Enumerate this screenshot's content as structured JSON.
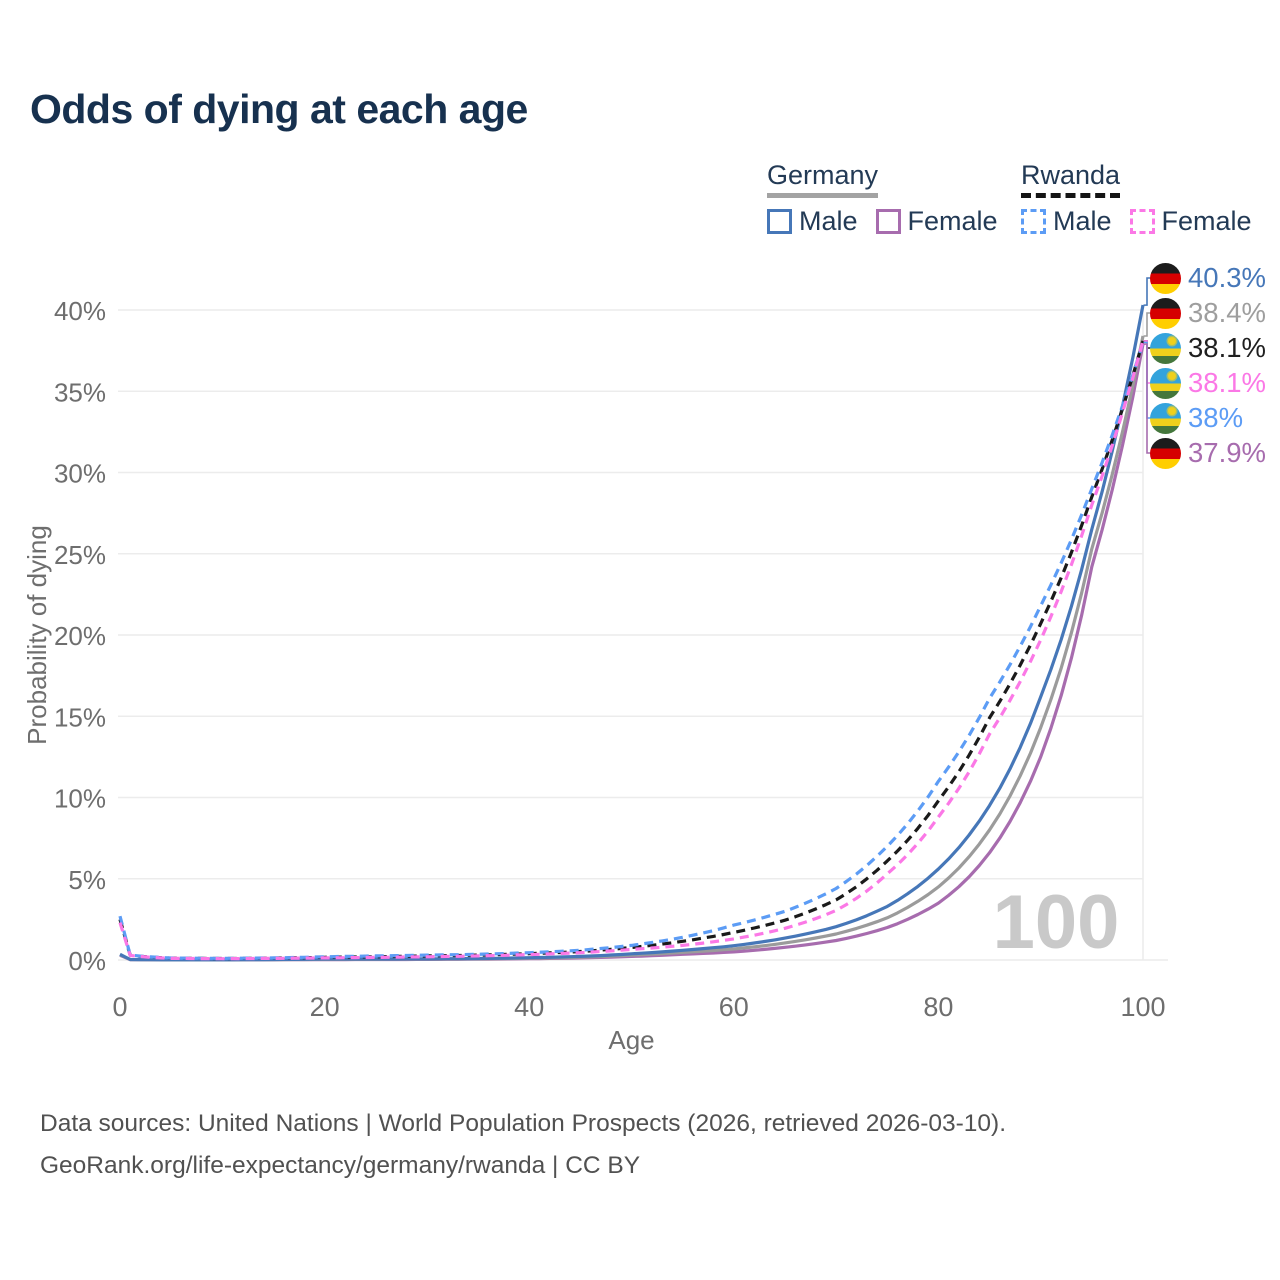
{
  "title": "Odds of dying at each age",
  "legend": {
    "groups": [
      {
        "id": "germany",
        "label": "Germany",
        "underline": "solid",
        "underline_color": "#a3a3a3",
        "items": [
          {
            "series": "de_m",
            "label": "Male",
            "color": "#4677b8",
            "dashed": false
          },
          {
            "series": "de_f",
            "label": "Female",
            "color": "#a76cae",
            "dashed": false
          }
        ]
      },
      {
        "id": "rwanda",
        "label": "Rwanda",
        "underline": "dashed",
        "underline_color": "#141414",
        "items": [
          {
            "series": "rw_m",
            "label": "Male",
            "color": "#5c9cf5",
            "dashed": true
          },
          {
            "series": "rw_f",
            "label": "Female",
            "color": "#fb78e6",
            "dashed": true
          }
        ]
      }
    ]
  },
  "chart_data": {
    "type": "line",
    "title": "Odds of dying at each age",
    "xlabel": "Age",
    "ylabel": "Probability of dying",
    "xlim": [
      0,
      100
    ],
    "ylim_percent": [
      0,
      42
    ],
    "grid": "horizontal",
    "watermark": "100",
    "x_ticks": [
      0,
      20,
      40,
      60,
      80,
      100
    ],
    "y_ticks": [
      {
        "value": 0,
        "label": "0%"
      },
      {
        "value": 5,
        "label": "5%"
      },
      {
        "value": 10,
        "label": "10%"
      },
      {
        "value": 15,
        "label": "15%"
      },
      {
        "value": 20,
        "label": "20%"
      },
      {
        "value": 25,
        "label": "25%"
      },
      {
        "value": 30,
        "label": "30%"
      },
      {
        "value": 35,
        "label": "35%"
      },
      {
        "value": 40,
        "label": "40%"
      }
    ],
    "ages": [
      0,
      1,
      5,
      10,
      15,
      20,
      25,
      30,
      35,
      40,
      45,
      50,
      55,
      60,
      65,
      70,
      75,
      80,
      85,
      90,
      95,
      100
    ],
    "series": [
      {
        "id": "de_f",
        "name": "Germany Female",
        "color": "#a76cae",
        "dashed": false,
        "end_value_percent": 37.9,
        "values_percent": [
          0.29,
          0.025,
          0.008,
          0.008,
          0.015,
          0.025,
          0.03,
          0.035,
          0.05,
          0.08,
          0.13,
          0.22,
          0.35,
          0.5,
          0.78,
          1.2,
          2.0,
          3.5,
          6.6,
          12.5,
          24.2,
          37.9
        ]
      },
      {
        "id": "de_avg",
        "name": "Germany (both sexes)",
        "color": "#9b9b9b",
        "dashed": false,
        "end_value_percent": 38.4,
        "values_percent": [
          0.32,
          0.028,
          0.009,
          0.009,
          0.022,
          0.042,
          0.045,
          0.052,
          0.07,
          0.11,
          0.17,
          0.3,
          0.47,
          0.68,
          1.05,
          1.6,
          2.6,
          4.5,
          8.0,
          14.3,
          25.3,
          38.4
        ]
      },
      {
        "id": "de_m",
        "name": "Germany Male",
        "color": "#4677b8",
        "dashed": false,
        "end_value_percent": 40.3,
        "values_percent": [
          0.35,
          0.03,
          0.01,
          0.01,
          0.03,
          0.06,
          0.06,
          0.07,
          0.09,
          0.14,
          0.22,
          0.38,
          0.6,
          0.88,
          1.35,
          2.05,
          3.3,
          5.6,
          9.5,
          16.2,
          26.5,
          40.3
        ]
      },
      {
        "id": "rw_avg",
        "name": "Rwanda (both sexes)",
        "color": "#1a1a1a",
        "dashed": true,
        "end_value_percent": 38.1,
        "values_percent": [
          2.5,
          0.29,
          0.11,
          0.09,
          0.115,
          0.165,
          0.2,
          0.25,
          0.3,
          0.39,
          0.52,
          0.77,
          1.15,
          1.7,
          2.45,
          3.7,
          6.1,
          9.8,
          14.9,
          20.7,
          28.5,
          38.1
        ]
      },
      {
        "id": "rw_m",
        "name": "Rwanda Male",
        "color": "#5c9cf5",
        "dashed": true,
        "end_value_percent": 38.0,
        "values_percent": [
          2.7,
          0.3,
          0.12,
          0.1,
          0.13,
          0.2,
          0.25,
          0.3,
          0.35,
          0.45,
          0.6,
          0.9,
          1.4,
          2.15,
          3.0,
          4.4,
          7.0,
          11.0,
          16.1,
          21.8,
          29.0,
          38.0
        ]
      },
      {
        "id": "rw_f",
        "name": "Rwanda Female",
        "color": "#fb78e6",
        "dashed": true,
        "end_value_percent": 38.1,
        "values_percent": [
          2.3,
          0.28,
          0.1,
          0.08,
          0.1,
          0.13,
          0.16,
          0.2,
          0.25,
          0.33,
          0.45,
          0.65,
          0.9,
          1.3,
          1.95,
          3.05,
          5.3,
          8.8,
          13.9,
          19.7,
          28.0,
          38.1
        ]
      }
    ]
  },
  "end_labels": [
    {
      "flag": "de",
      "text": "40.3%",
      "color": "#4677b8",
      "series": "de_m"
    },
    {
      "flag": "de",
      "text": "38.4%",
      "color": "#9e9e9e",
      "series": "de_avg"
    },
    {
      "flag": "rw",
      "text": "38.1%",
      "color": "#1f1f1f",
      "series": "rw_avg"
    },
    {
      "flag": "rw",
      "text": "38.1%",
      "color": "#fb78e6",
      "series": "rw_f"
    },
    {
      "flag": "rw",
      "text": "38%",
      "color": "#5c9cf5",
      "series": "rw_m"
    },
    {
      "flag": "de",
      "text": "37.9%",
      "color": "#a76cae",
      "series": "de_f"
    }
  ],
  "footer": {
    "line1": "Data sources: United Nations | World Population Prospects (2026, retrieved 2026-03-10).",
    "line2": "GeoRank.org/life-expectancy/germany/rwanda | CC BY"
  }
}
